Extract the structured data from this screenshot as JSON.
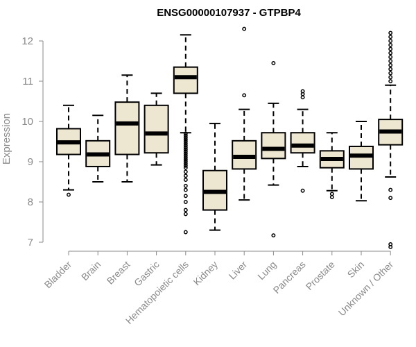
{
  "chart_data": {
    "type": "box",
    "title": "ENSG00000107937 - GTPBP4",
    "xlabel": "",
    "ylabel": "Expression",
    "ylim": [
      7,
      12
    ],
    "yticks": [
      7,
      8,
      9,
      10,
      11,
      12
    ],
    "box_fill": "#ede6d0",
    "median_color": "#000000",
    "categories": [
      "Bladder",
      "Brain",
      "Breast",
      "Gastric",
      "Hematopoietic cells",
      "Kidney",
      "Liver",
      "Lung",
      "Pancreas",
      "Prostate",
      "Skin",
      "Unknown / Other"
    ],
    "boxes": [
      {
        "q1": 9.18,
        "median": 9.48,
        "q3": 9.82,
        "whisker_low": 8.3,
        "whisker_high": 10.4,
        "outliers": [
          8.18
        ]
      },
      {
        "q1": 8.88,
        "median": 9.18,
        "q3": 9.52,
        "whisker_low": 8.5,
        "whisker_high": 10.15,
        "outliers": []
      },
      {
        "q1": 9.18,
        "median": 9.95,
        "q3": 10.48,
        "whisker_low": 8.5,
        "whisker_high": 11.15,
        "outliers": []
      },
      {
        "q1": 9.22,
        "median": 9.7,
        "q3": 10.4,
        "whisker_low": 8.92,
        "whisker_high": 10.7,
        "outliers": []
      },
      {
        "q1": 10.7,
        "median": 11.1,
        "q3": 11.35,
        "whisker_low": 9.72,
        "whisker_high": 12.15,
        "outliers": [
          7.25,
          7.7,
          7.8,
          8.0,
          8.15,
          8.3,
          8.4,
          8.55,
          8.65,
          8.75,
          8.85,
          8.9,
          8.95,
          9.0,
          9.05,
          9.1,
          9.15,
          9.2,
          9.25,
          9.3,
          9.35,
          9.4,
          9.45,
          9.5,
          9.55,
          9.6,
          9.65,
          9.7
        ]
      },
      {
        "q1": 7.8,
        "median": 8.25,
        "q3": 8.78,
        "whisker_low": 7.3,
        "whisker_high": 9.95,
        "outliers": []
      },
      {
        "q1": 8.82,
        "median": 9.12,
        "q3": 9.52,
        "whisker_low": 8.05,
        "whisker_high": 10.3,
        "outliers": [
          10.65,
          12.3
        ]
      },
      {
        "q1": 9.08,
        "median": 9.32,
        "q3": 9.72,
        "whisker_low": 8.42,
        "whisker_high": 10.45,
        "outliers": [
          7.17,
          11.45
        ]
      },
      {
        "q1": 9.22,
        "median": 9.4,
        "q3": 9.72,
        "whisker_low": 8.88,
        "whisker_high": 10.3,
        "outliers": [
          8.28,
          10.6,
          10.68,
          10.75
        ]
      },
      {
        "q1": 8.85,
        "median": 9.07,
        "q3": 9.27,
        "whisker_low": 8.28,
        "whisker_high": 9.72,
        "outliers": [
          8.12,
          8.2
        ]
      },
      {
        "q1": 8.82,
        "median": 9.15,
        "q3": 9.38,
        "whisker_low": 8.03,
        "whisker_high": 10.0,
        "outliers": []
      },
      {
        "q1": 9.42,
        "median": 9.75,
        "q3": 10.05,
        "whisker_low": 8.62,
        "whisker_high": 10.9,
        "outliers": [
          6.88,
          6.95,
          8.1,
          8.3,
          11.0,
          11.1,
          11.2,
          11.3,
          11.4,
          11.5,
          11.6,
          11.7,
          11.8,
          11.9,
          12.0,
          12.1,
          12.2
        ]
      }
    ]
  }
}
